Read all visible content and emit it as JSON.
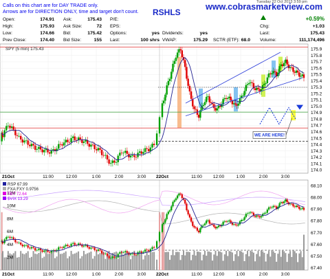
{
  "notice": {
    "line1": "Calls on this chart are for DAY TRADE only.",
    "line2": "Arrows are for DIRECTION ONLY, time and target don't count."
  },
  "watermark": "www.cobrasmarketview.com",
  "ticker_partial": "RSHLS",
  "header_top_partial": "Tuesday 22 Oct 2013 3:59 pm",
  "quote": {
    "open_label": "Open:",
    "open": "174.91",
    "ask_label": "Ask:",
    "ask": "175.43",
    "pe_label": "P/E:",
    "pe": "",
    "high_label": "High:",
    "high": "175.93",
    "ask_size_label": "Ask Size:",
    "ask_size": "72",
    "eps_label": "EPS:",
    "eps": "",
    "low_label": "Low:",
    "low": "174.66",
    "bid_label": "Bid:",
    "bid": "175.42",
    "options_label": "Options:",
    "options": "yes",
    "prev_close_label": "Prev Close:",
    "prev_close": "174.40",
    "bid_size_label": "Bid Size:",
    "bid_size": "155",
    "last_size_label": "Last:",
    "last_size": "100 shrs",
    "dividends_label": "Dividends:",
    "dividends": "yes",
    "vwap_label": "VWAP:",
    "vwap": "175.29",
    "sctr_label": "SCTR (ETF):",
    "sctr": "68.0",
    "pct_change": "+0.59%",
    "chg_label": "Chg:",
    "chg": "+1.03",
    "last_label": "Last:",
    "last": "175.43",
    "volume_label": "Volume:",
    "volume": "111,174,496"
  },
  "colors": {
    "up": "#00a000",
    "down": "#e00000",
    "ma": "#202090",
    "arrow_blue": "#1a3bd9",
    "highlight_orange": "#f7b07a",
    "highlight_blue": "#6fb7ee",
    "highlight_green": "#c8f03a",
    "highlight_yellow": "#ffff40",
    "hline_red": "#e03030",
    "hline_green": "#3aa03a",
    "watermark": "#1a2ac8",
    "volume_bar": "#999999",
    "pct_green": "#008000"
  },
  "chart_data": [
    {
      "type": "candlestick",
      "title": "SPY (5 min) 175.43",
      "symbol": "SPY",
      "interval": "5 min",
      "last": 175.43,
      "x_ticks": [
        {
          "label": "21Oct",
          "bold": true
        },
        {
          "label": "11:00"
        },
        {
          "label": "12:00"
        },
        {
          "label": "1:00"
        },
        {
          "label": "2:00"
        },
        {
          "label": "3:00"
        },
        {
          "label": "22Oct",
          "bold": true
        },
        {
          "label": "11:00"
        },
        {
          "label": "12:00"
        },
        {
          "label": "1:00"
        },
        {
          "label": "2:00"
        },
        {
          "label": "3:00"
        }
      ],
      "y_ticks": [
        174.0,
        174.1,
        174.2,
        174.3,
        174.4,
        174.5,
        174.6,
        174.7,
        174.8,
        174.9,
        175.0,
        175.1,
        175.2,
        175.3,
        175.4,
        175.5,
        175.6,
        175.7,
        175.8,
        175.9
      ],
      "ylim": [
        173.95,
        175.98
      ],
      "horizontal_lines": [
        {
          "value": 175.93,
          "style": "solid",
          "color": "red"
        },
        {
          "value": 175.3,
          "style": "dotted",
          "color": "black"
        },
        {
          "value": 174.91,
          "style": "solid",
          "color": "green"
        },
        {
          "value": 174.66,
          "style": "solid",
          "color": "red"
        },
        {
          "value": 174.45,
          "style": "dashed",
          "color": "black"
        }
      ],
      "annotations": [
        {
          "type": "callout",
          "text": "WE ARE HERE!"
        },
        {
          "type": "zigzag-arrow",
          "direction": "down-up"
        },
        {
          "type": "channel-lines",
          "note": "rising channel on 22 Oct"
        }
      ],
      "close_series_approx": [
        174.55,
        174.72,
        174.62,
        174.5,
        174.45,
        174.4,
        174.35,
        174.32,
        174.3,
        174.28,
        174.35,
        174.42,
        174.45,
        174.5,
        174.48,
        174.45,
        174.4,
        174.35,
        174.3,
        174.2,
        174.1,
        174.15,
        174.3,
        174.25,
        174.2,
        174.25,
        174.3,
        174.33,
        174.4,
        175.02,
        175.3,
        175.55,
        175.8,
        175.9,
        175.6,
        175.2,
        174.95,
        174.85,
        175.05,
        175.15,
        175.0,
        174.95,
        175.05,
        175.15,
        175.1,
        175.0,
        175.1,
        175.25,
        175.4,
        175.3,
        175.25,
        175.3,
        175.45,
        175.55,
        175.5,
        175.65,
        175.7,
        175.6,
        175.55,
        175.5,
        175.45
      ]
    },
    {
      "type": "line",
      "title": "RSP 67.99",
      "series": [
        {
          "name": "FXA:FXY 0.9756"
        },
        {
          "name": "TBT 72.64"
        },
        {
          "name": "$VIX 13.29"
        }
      ],
      "y_ticks_right": [
        67.4,
        67.5,
        67.6,
        67.7,
        67.8,
        67.9,
        68.0,
        68.1
      ],
      "y_ticks_left": [
        "2M",
        "4M",
        "6M",
        "8M",
        "10M",
        "12M"
      ],
      "x_ticks": [
        {
          "label": "21Oct",
          "bold": true
        },
        {
          "label": "11:00"
        },
        {
          "label": "12:00"
        },
        {
          "label": "1:00"
        },
        {
          "label": "2:00"
        },
        {
          "label": "3:00"
        },
        {
          "label": "22Oct",
          "bold": true
        },
        {
          "label": "11:00"
        },
        {
          "label": "12:00"
        },
        {
          "label": "1:00"
        },
        {
          "label": "2:00"
        },
        {
          "label": "3:00"
        }
      ]
    }
  ]
}
